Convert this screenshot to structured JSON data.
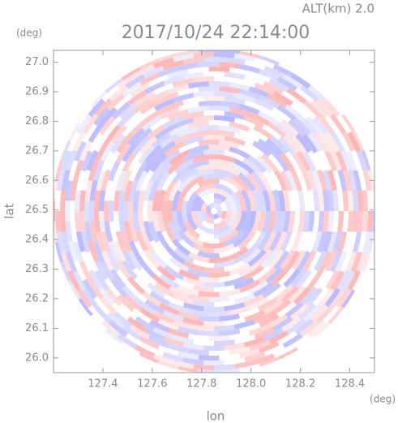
{
  "chart_data": {
    "type": "radar-image",
    "title": "2017/10/24 22:14:00",
    "altitude_label": "ALT(km) 2.0",
    "y_unit": "(deg)",
    "x_unit": "(deg)",
    "xlabel": "lon",
    "ylabel": "lat",
    "xlim": [
      127.2,
      128.5
    ],
    "ylim": [
      25.95,
      27.04
    ],
    "xticks": [
      127.4,
      127.6,
      127.8,
      {
        "value": 128,
        "label": "128.0"
      },
      128.2,
      128.4
    ],
    "yticks": [
      {
        "value": 26,
        "label": "26.0"
      },
      26.1,
      26.2,
      26.3,
      26.4,
      26.5,
      26.6,
      26.7,
      26.8,
      26.9,
      {
        "value": 27,
        "label": "27.0"
      }
    ]
  }
}
